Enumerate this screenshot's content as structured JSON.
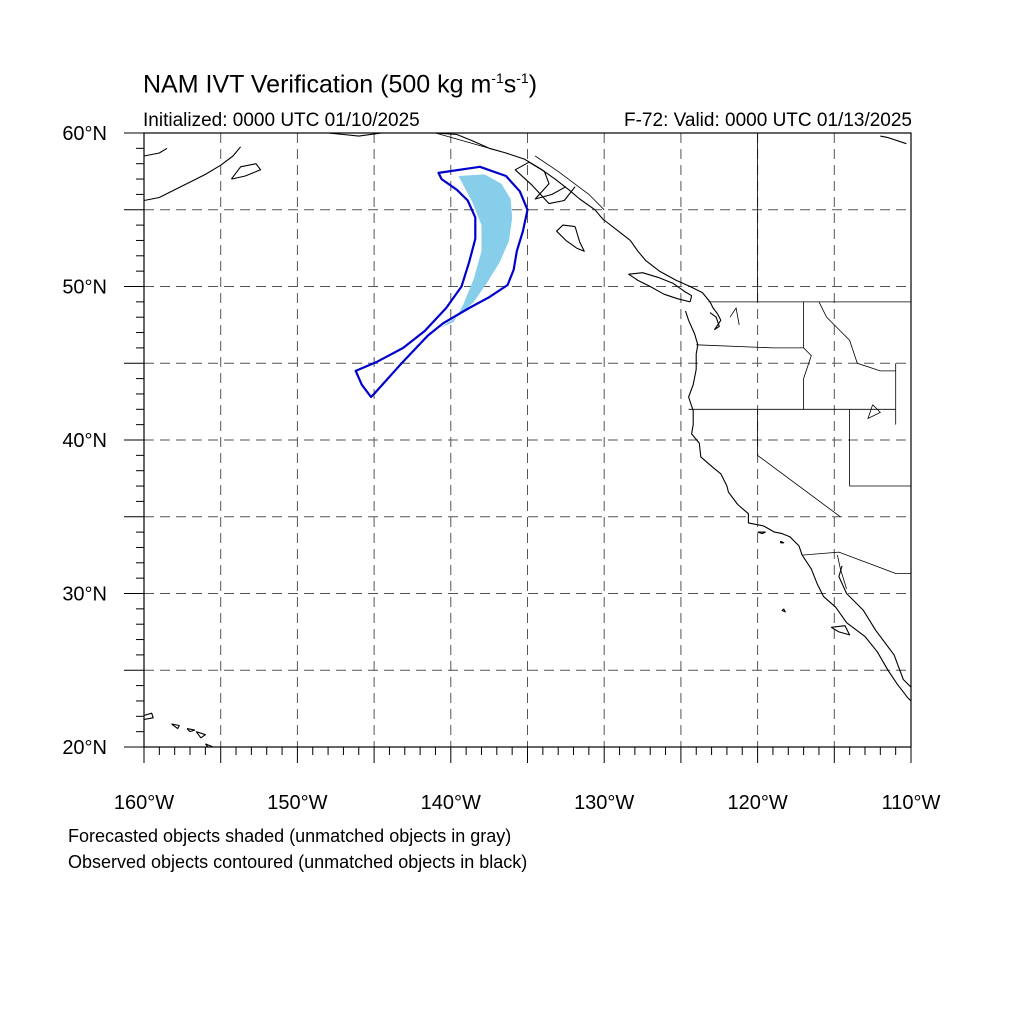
{
  "header": {
    "title_main": "NAM IVT Verification (500 kg m",
    "title_exp1": "-1",
    "title_mid": "s",
    "title_exp2": "-1",
    "title_end": ")",
    "initialized": "Initialized: 0000 UTC 01/10/2025",
    "valid": "F-72: Valid: 0000 UTC 01/13/2025"
  },
  "legend": {
    "line1": "Forecasted objects shaded (unmatched objects in gray)",
    "line2": "Observed objects contoured (unmatched objects in black)"
  },
  "map": {
    "lon_range": [
      -160,
      -110
    ],
    "lat_range": [
      20,
      60
    ],
    "lon_labels": [
      "160°W",
      "150°W",
      "140°W",
      "130°W",
      "120°W",
      "110°W"
    ],
    "lat_labels": [
      "20°N",
      "30°N",
      "40°N",
      "50°N",
      "60°N"
    ],
    "colors": {
      "forecast_fill": "#87ceeb",
      "observed_contour": "#0000cd",
      "coastline": "#000000",
      "grid": "#555555"
    },
    "forecast_object": [
      [
        -139.5,
        57.2
      ],
      [
        -137.8,
        57.3
      ],
      [
        -136.7,
        56.7
      ],
      [
        -136.1,
        55.7
      ],
      [
        -136.0,
        54.5
      ],
      [
        -136.2,
        53.0
      ],
      [
        -136.8,
        51.6
      ],
      [
        -137.6,
        50.3
      ],
      [
        -138.5,
        49.0
      ],
      [
        -139.5,
        48.1
      ],
      [
        -140.7,
        47.3
      ],
      [
        -139.8,
        47.7
      ],
      [
        -139.2,
        48.8
      ],
      [
        -138.5,
        50.5
      ],
      [
        -138.0,
        52.3
      ],
      [
        -138.0,
        54.0
      ],
      [
        -138.6,
        55.5
      ]
    ],
    "observed_object": [
      [
        -140.8,
        57.4
      ],
      [
        -138.1,
        57.8
      ],
      [
        -136.4,
        57.2
      ],
      [
        -135.5,
        56.2
      ],
      [
        -135.0,
        55.0
      ],
      [
        -135.3,
        53.6
      ],
      [
        -135.7,
        52.3
      ],
      [
        -135.9,
        51.1
      ],
      [
        -136.3,
        50.1
      ],
      [
        -137.5,
        49.3
      ],
      [
        -138.8,
        48.6
      ],
      [
        -140.5,
        47.6
      ],
      [
        -141.5,
        46.8
      ],
      [
        -143.3,
        44.9
      ],
      [
        -145.0,
        43.0
      ],
      [
        -145.2,
        42.8
      ],
      [
        -145.8,
        43.6
      ],
      [
        -146.2,
        44.5
      ],
      [
        -144.8,
        45.1
      ],
      [
        -143.1,
        46.0
      ],
      [
        -141.7,
        47.1
      ],
      [
        -140.3,
        48.6
      ],
      [
        -139.3,
        50.0
      ],
      [
        -138.8,
        51.6
      ],
      [
        -138.4,
        53.1
      ],
      [
        -138.4,
        54.5
      ],
      [
        -138.9,
        55.6
      ],
      [
        -139.6,
        56.3
      ],
      [
        -140.6,
        57.0
      ]
    ],
    "coastlines": [
      [
        [
          -114.5,
          31.8
        ],
        [
          -114.7,
          31.1
        ],
        [
          -114.2,
          30.0
        ],
        [
          -113.1,
          28.9
        ],
        [
          -112.3,
          27.6
        ],
        [
          -111.1,
          26.0
        ],
        [
          -110.5,
          24.4
        ],
        [
          -110.0,
          23.9
        ]
      ],
      [
        [
          -117.1,
          32.5
        ],
        [
          -116.5,
          31.6
        ],
        [
          -116.1,
          30.6
        ],
        [
          -115.7,
          29.8
        ],
        [
          -114.9,
          29.1
        ],
        [
          -114.2,
          28.1
        ],
        [
          -113.0,
          27.2
        ],
        [
          -112.2,
          26.2
        ],
        [
          -111.5,
          25.0
        ],
        [
          -110.9,
          24.1
        ],
        [
          -110.2,
          23.2
        ],
        [
          -110.0,
          23.0
        ]
      ],
      [
        [
          -115.2,
          27.8
        ],
        [
          -114.3,
          27.9
        ],
        [
          -114.0,
          27.3
        ],
        [
          -114.7,
          27.5
        ],
        [
          -115.2,
          27.8
        ]
      ],
      [
        [
          -117.1,
          32.5
        ],
        [
          -117.3,
          33.1
        ],
        [
          -117.9,
          33.7
        ],
        [
          -118.4,
          33.9
        ],
        [
          -118.9,
          34.0
        ],
        [
          -119.6,
          34.4
        ],
        [
          -120.6,
          34.6
        ],
        [
          -120.6,
          35.2
        ],
        [
          -121.3,
          35.8
        ],
        [
          -121.9,
          36.6
        ],
        [
          -122.0,
          37.0
        ],
        [
          -122.4,
          37.8
        ],
        [
          -122.9,
          38.2
        ],
        [
          -123.7,
          38.9
        ],
        [
          -123.8,
          39.8
        ],
        [
          -124.3,
          40.4
        ],
        [
          -124.2,
          41.0
        ],
        [
          -124.2,
          41.9
        ],
        [
          -124.5,
          42.8
        ],
        [
          -124.2,
          43.6
        ],
        [
          -124.0,
          44.6
        ],
        [
          -124.0,
          45.6
        ],
        [
          -123.9,
          46.2
        ],
        [
          -124.1,
          46.9
        ],
        [
          -124.5,
          47.8
        ],
        [
          -124.7,
          48.4
        ]
      ],
      [
        [
          -123.1,
          48.3
        ],
        [
          -122.7,
          48.0
        ],
        [
          -122.5,
          47.4
        ],
        [
          -122.8,
          47.2
        ],
        [
          -122.4,
          47.8
        ],
        [
          -122.6,
          48.2
        ],
        [
          -122.9,
          48.6
        ],
        [
          -123.1,
          49.0
        ]
      ],
      [
        [
          -124.4,
          49.0
        ],
        [
          -125.2,
          49.2
        ],
        [
          -126.1,
          49.5
        ],
        [
          -127.0,
          50.0
        ],
        [
          -127.8,
          50.4
        ],
        [
          -128.4,
          50.8
        ],
        [
          -127.5,
          50.9
        ],
        [
          -126.5,
          50.6
        ],
        [
          -125.5,
          50.2
        ],
        [
          -124.8,
          49.7
        ],
        [
          -124.3,
          49.4
        ],
        [
          -124.4,
          49.0
        ]
      ],
      [
        [
          -123.1,
          49.0
        ],
        [
          -123.6,
          49.6
        ],
        [
          -124.4,
          50.0
        ],
        [
          -125.3,
          50.4
        ],
        [
          -126.4,
          51.0
        ],
        [
          -127.3,
          51.7
        ],
        [
          -127.8,
          52.3
        ],
        [
          -128.3,
          53.0
        ],
        [
          -129.2,
          53.7
        ],
        [
          -130.1,
          54.4
        ],
        [
          -130.6,
          55.0
        ],
        [
          -131.6,
          55.7
        ],
        [
          -132.3,
          56.3
        ],
        [
          -133.2,
          57.0
        ],
        [
          -134.2,
          57.7
        ],
        [
          -135.2,
          58.3
        ],
        [
          -136.4,
          58.7
        ],
        [
          -137.5,
          59.0
        ],
        [
          -138.6,
          59.5
        ],
        [
          -139.6,
          59.9
        ],
        [
          -141.0,
          60.0
        ]
      ],
      [
        [
          -131.9,
          53.9
        ],
        [
          -132.7,
          54.0
        ],
        [
          -133.1,
          53.6
        ],
        [
          -132.5,
          53.0
        ],
        [
          -131.8,
          52.5
        ],
        [
          -131.3,
          52.3
        ],
        [
          -131.6,
          52.9
        ],
        [
          -131.9,
          53.9
        ]
      ],
      [
        [
          -132.5,
          56.5
        ],
        [
          -133.4,
          56.0
        ],
        [
          -134.5,
          55.7
        ],
        [
          -133.6,
          56.7
        ],
        [
          -133.9,
          57.5
        ],
        [
          -134.9,
          58.1
        ],
        [
          -135.8,
          57.6
        ],
        [
          -134.7,
          56.6
        ],
        [
          -133.6,
          55.4
        ],
        [
          -132.6,
          55.6
        ],
        [
          -131.9,
          56.5
        ]
      ],
      [
        [
          -110.3,
          59.3
        ],
        [
          -111.5,
          59.7
        ],
        [
          -112.0,
          59.8
        ]
      ],
      [
        [
          -160.0,
          55.6
        ],
        [
          -159.0,
          55.8
        ],
        [
          -158.0,
          56.3
        ],
        [
          -157.0,
          56.8
        ],
        [
          -156.0,
          57.3
        ],
        [
          -155.0,
          57.9
        ],
        [
          -154.2,
          58.5
        ],
        [
          -153.7,
          59.1
        ]
      ],
      [
        [
          -160.0,
          58.5
        ],
        [
          -159.0,
          58.7
        ],
        [
          -158.5,
          59.0
        ]
      ],
      [
        [
          -154.3,
          57.0
        ],
        [
          -153.4,
          57.2
        ],
        [
          -152.4,
          57.6
        ],
        [
          -152.7,
          58.0
        ],
        [
          -153.7,
          57.8
        ],
        [
          -154.3,
          57.0
        ]
      ],
      [
        [
          -144.5,
          60.0
        ],
        [
          -146.0,
          59.8
        ],
        [
          -147.0,
          59.9
        ],
        [
          -148.0,
          60.0
        ]
      ],
      [
        [
          -120.0,
          34.0
        ],
        [
          -119.7,
          33.9
        ],
        [
          -119.5,
          34.0
        ],
        [
          -120.0,
          34.0
        ]
      ],
      [
        [
          -118.5,
          33.4
        ],
        [
          -118.3,
          33.3
        ],
        [
          -118.5,
          33.3
        ],
        [
          -118.5,
          33.4
        ]
      ],
      [
        [
          -118.3,
          29.0
        ],
        [
          -118.4,
          28.9
        ],
        [
          -118.2,
          28.8
        ],
        [
          -118.3,
          29.0
        ]
      ],
      [
        [
          -160.2,
          22.0
        ],
        [
          -159.5,
          22.2
        ],
        [
          -159.4,
          21.9
        ],
        [
          -160.0,
          21.8
        ],
        [
          -160.2,
          22.0
        ]
      ],
      [
        [
          -158.2,
          21.5
        ],
        [
          -157.7,
          21.4
        ],
        [
          -157.8,
          21.2
        ],
        [
          -158.2,
          21.5
        ]
      ],
      [
        [
          -157.2,
          21.2
        ],
        [
          -156.7,
          21.1
        ],
        [
          -157.0,
          21.0
        ],
        [
          -157.2,
          21.2
        ]
      ],
      [
        [
          -156.6,
          21.0
        ],
        [
          -156.0,
          20.8
        ],
        [
          -156.3,
          20.6
        ],
        [
          -156.6,
          21.0
        ]
      ],
      [
        [
          -156.0,
          20.2
        ],
        [
          -155.0,
          19.8
        ],
        [
          -155.5,
          19.6
        ],
        [
          -156.0,
          20.2
        ]
      ]
    ],
    "borders": [
      [
        [
          -123.2,
          49.0
        ],
        [
          -110.0,
          49.0
        ]
      ],
      [
        [
          -124.5,
          42.0
        ],
        [
          -117.0,
          42.0
        ],
        [
          -111.0,
          42.0
        ]
      ],
      [
        [
          -120.0,
          42.0
        ],
        [
          -120.0,
          39.0
        ],
        [
          -114.6,
          35.0
        ]
      ],
      [
        [
          -117.0,
          49.0
        ],
        [
          -117.0,
          46.0
        ]
      ],
      [
        [
          -124.0,
          46.2
        ],
        [
          -119.0,
          46.0
        ],
        [
          -117.0,
          46.0
        ]
      ],
      [
        [
          -117.0,
          46.0
        ],
        [
          -116.5,
          45.5
        ],
        [
          -117.0,
          44.0
        ],
        [
          -117.0,
          42.0
        ]
      ],
      [
        [
          -114.0,
          42.0
        ],
        [
          -114.0,
          37.0
        ],
        [
          -110.0,
          37.0
        ]
      ],
      [
        [
          -111.0,
          45.0
        ],
        [
          -111.0,
          41.0
        ]
      ],
      [
        [
          -117.1,
          32.5
        ],
        [
          -114.7,
          32.7
        ],
        [
          -111.0,
          31.3
        ],
        [
          -110.0,
          31.3
        ]
      ],
      [
        [
          -116.0,
          49.0
        ],
        [
          -115.5,
          48.0
        ],
        [
          -114.5,
          47.0
        ],
        [
          -114.0,
          46.5
        ],
        [
          -113.5,
          45.0
        ],
        [
          -112.0,
          44.5
        ],
        [
          -111.0,
          44.5
        ]
      ],
      [
        [
          -120.0,
          60.0
        ],
        [
          -120.0,
          49.0
        ]
      ],
      [
        [
          -141.0,
          60.0
        ],
        [
          -137.5,
          59.0
        ]
      ],
      [
        [
          -134.5,
          58.5
        ],
        [
          -133.0,
          57.5
        ],
        [
          -131.0,
          56.0
        ],
        [
          -130.0,
          55.0
        ]
      ],
      [
        [
          -121.8,
          48.0
        ],
        [
          -121.4,
          48.6
        ],
        [
          -121.2,
          47.5
        ]
      ],
      [
        [
          -112.5,
          42.3
        ],
        [
          -112.0,
          41.8
        ],
        [
          -112.8,
          41.4
        ],
        [
          -112.5,
          42.3
        ]
      ],
      [
        [
          -114.8,
          32.5
        ],
        [
          -114.6,
          31.6
        ],
        [
          -114.2,
          30.3
        ]
      ]
    ]
  }
}
